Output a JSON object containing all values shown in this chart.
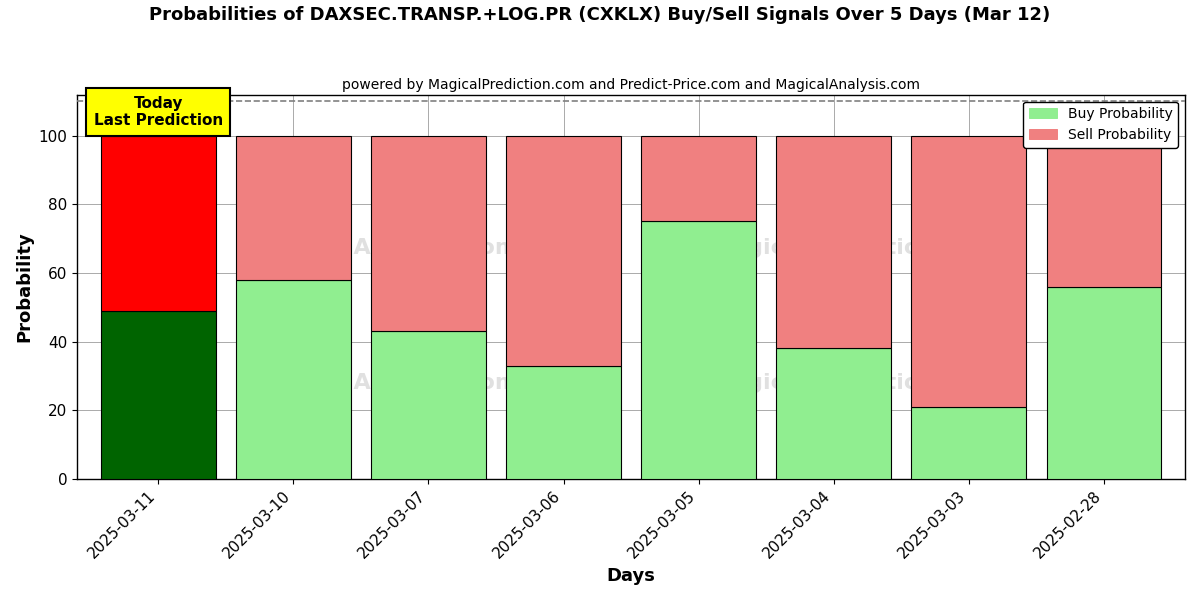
{
  "title": "Probabilities of DAXSEC.TRANSP.+LOG.PR (CXKLX) Buy/Sell Signals Over 5 Days (Mar 12)",
  "subtitle": "powered by MagicalPrediction.com and Predict-Price.com and MagicalAnalysis.com",
  "xlabel": "Days",
  "ylabel": "Probability",
  "dates": [
    "2025-03-11",
    "2025-03-10",
    "2025-03-07",
    "2025-03-06",
    "2025-03-05",
    "2025-03-04",
    "2025-03-03",
    "2025-02-28"
  ],
  "buy_values": [
    49,
    58,
    43,
    33,
    75,
    38,
    21,
    56
  ],
  "sell_values": [
    51,
    42,
    57,
    67,
    25,
    62,
    79,
    44
  ],
  "buy_colors": [
    "#006400",
    "#90EE90",
    "#90EE90",
    "#90EE90",
    "#90EE90",
    "#90EE90",
    "#90EE90",
    "#90EE90"
  ],
  "sell_colors": [
    "#FF0000",
    "#F08080",
    "#F08080",
    "#F08080",
    "#F08080",
    "#F08080",
    "#F08080",
    "#F08080"
  ],
  "today_box_text": "Today\nLast Prediction",
  "today_box_color": "#FFFF00",
  "legend_buy_label": "Buy Probability",
  "legend_sell_label": "Sell Probability",
  "ylim": [
    0,
    112
  ],
  "yticks": [
    0,
    20,
    40,
    60,
    80,
    100
  ],
  "dashed_line_y": 110,
  "bar_edge_color": "#000000",
  "bar_edge_width": 0.8,
  "background_color": "#ffffff",
  "grid_color": "#aaaaaa",
  "bar_width": 0.85
}
